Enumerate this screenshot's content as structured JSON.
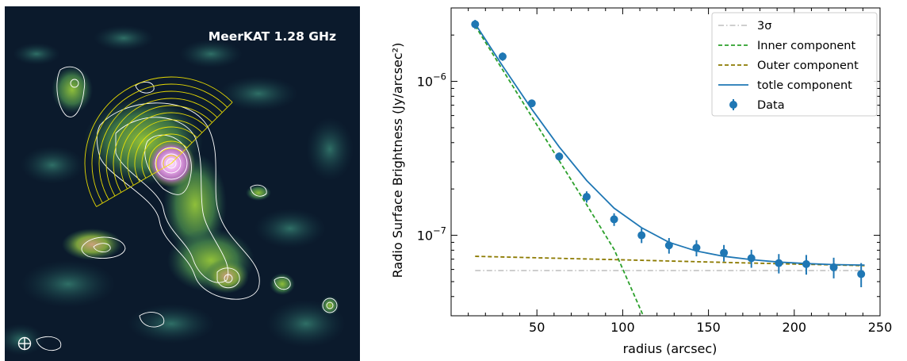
{
  "image_panel": {
    "title": "MeerKAT 1.28 GHz",
    "colors": {
      "background": "#0b1a2c",
      "emission": "#2e6a4e",
      "bright_emission": "#6fa832",
      "core": "#e6a3e8",
      "contour": "#ffffff",
      "sector_arcs": "#f2e400"
    },
    "beam_icon": "crosshair-circle-icon"
  },
  "chart_data": {
    "type": "scatter",
    "xlabel": "radius (arcsec)",
    "ylabel": "Radio Surface Brightness (Jy/arcsec²)",
    "xlim": [
      0,
      250
    ],
    "ylim": [
      3e-08,
      3e-06
    ],
    "yscale": "log",
    "x_ticks": [
      {
        "value": 50,
        "label": "50"
      },
      {
        "value": 100,
        "label": "100"
      },
      {
        "value": 150,
        "label": "150"
      },
      {
        "value": 200,
        "label": "200"
      },
      {
        "value": 250,
        "label": "250"
      }
    ],
    "y_ticks": [
      {
        "value": 1e-07,
        "base": "10",
        "exp": "−7"
      },
      {
        "value": 1e-06,
        "base": "10",
        "exp": "−6"
      }
    ],
    "legend_position": "top-right",
    "data": {
      "name": "Data",
      "color": "#1f77b4",
      "x": [
        14,
        30,
        47,
        63,
        79,
        95,
        111,
        127,
        143,
        159,
        175,
        191,
        207,
        223,
        239
      ],
      "y": [
        2.35e-06,
        1.45e-06,
        7.2e-07,
        3.25e-07,
        1.78e-07,
        1.27e-07,
        1e-07,
        8.6e-08,
        8.3e-08,
        7.7e-08,
        7.1e-08,
        6.6e-08,
        6.5e-08,
        6.2e-08,
        5.6e-08
      ],
      "yerr": [
        1.6e-07,
        9e-08,
        4e-08,
        2e-08,
        1.5e-08,
        1.2e-08,
        1.1e-08,
        1e-08,
        1e-08,
        9.5e-09,
        9.5e-09,
        9.5e-09,
        9.5e-09,
        9.5e-09,
        1e-08
      ]
    },
    "lines": [
      {
        "name": "3σ",
        "color": "#c8c8c8",
        "dash": "7,3,1.5,3",
        "x": [
          14,
          241
        ],
        "y": [
          5.9e-08,
          5.9e-08
        ]
      },
      {
        "name": "Inner component",
        "color": "#2ca02c",
        "dash": "5,3",
        "x": [
          14,
          30,
          47,
          63,
          79,
          95,
          112
        ],
        "y": [
          2.3e-06,
          1.19e-06,
          5.9e-07,
          3.05e-07,
          1.58e-07,
          8.1e-08,
          3e-08
        ]
      },
      {
        "name": "Outer component",
        "color": "#8c7a00",
        "dash": "5,3",
        "x": [
          14,
          95,
          175,
          241
        ],
        "y": [
          7.3e-08,
          6.95e-08,
          6.6e-08,
          6.35e-08
        ]
      },
      {
        "name": "totle component",
        "color": "#1f77b4",
        "dash": "",
        "x": [
          14,
          30,
          47,
          63,
          79,
          95,
          111,
          127,
          143,
          159,
          175,
          191,
          207,
          223,
          241
        ],
        "y": [
          2.37e-06,
          1.26e-06,
          6.6e-07,
          3.75e-07,
          2.27e-07,
          1.5e-07,
          1.12e-07,
          9e-08,
          7.9e-08,
          7.3e-08,
          6.95e-08,
          6.7e-08,
          6.55e-08,
          6.45e-08,
          6.4e-08
        ]
      }
    ],
    "legend_order": [
      "3σ",
      "Inner component",
      "Outer component",
      "totle component",
      "Data"
    ]
  }
}
